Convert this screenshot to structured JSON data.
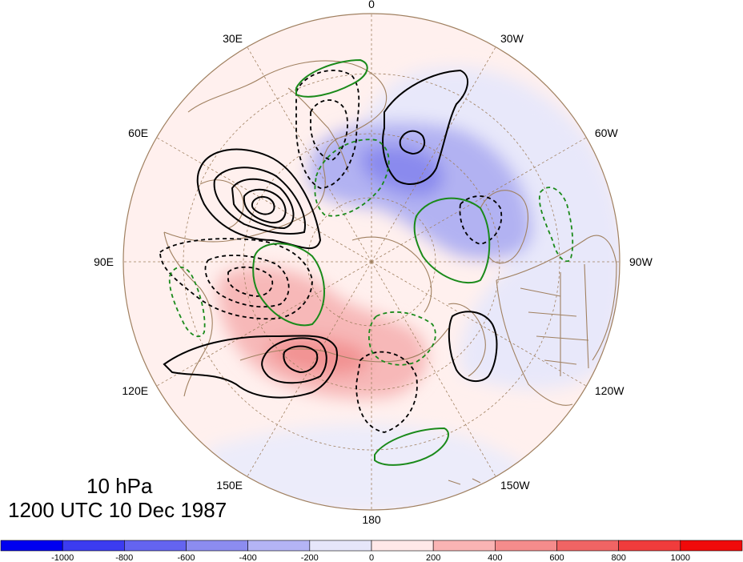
{
  "map": {
    "level_label": "10 hPa",
    "time_label": "1200 UTC 10 Dec 1987",
    "meridian_labels": [
      {
        "text": "0",
        "lon": 0
      },
      {
        "text": "30W",
        "lon": -30
      },
      {
        "text": "60W",
        "lon": -60
      },
      {
        "text": "90W",
        "lon": -90
      },
      {
        "text": "120W",
        "lon": -120
      },
      {
        "text": "150W",
        "lon": -150
      },
      {
        "text": "180",
        "lon": 180
      },
      {
        "text": "150E",
        "lon": 150
      },
      {
        "text": "120E",
        "lon": 120
      },
      {
        "text": "90E",
        "lon": 90
      },
      {
        "text": "60E",
        "lon": 60
      },
      {
        "text": "30E",
        "lon": 30
      }
    ],
    "colorbar": {
      "ticks": [
        "-1000",
        "-800",
        "-600",
        "-400",
        "-200",
        "0",
        "200",
        "400",
        "600",
        "800",
        "1000"
      ],
      "colors": [
        "#0000f0",
        "#3c3cf0",
        "#6464f0",
        "#8c8cf0",
        "#b4b4f5",
        "#e6e6fa",
        "#ffe8e8",
        "#fab4b4",
        "#f58c8c",
        "#f06464",
        "#f03c3c",
        "#f00a0a"
      ]
    },
    "colors": {
      "positive_contour": "#000000",
      "negative_contour": "#000000",
      "green_contour": "#1a8a1a",
      "coastline": "#a08060",
      "grid": "#a08060"
    }
  }
}
